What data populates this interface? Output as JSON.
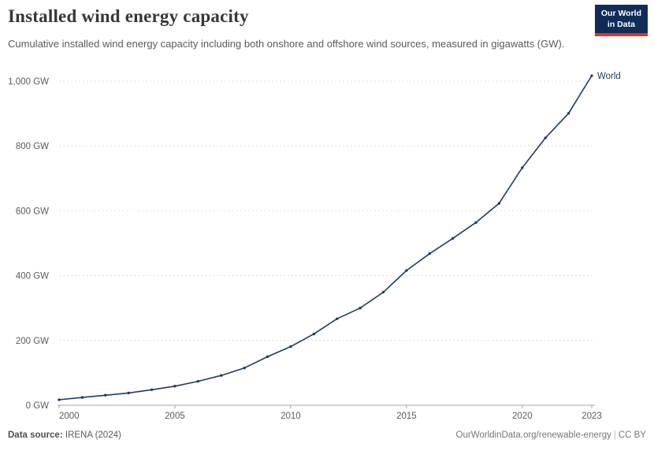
{
  "header": {
    "title": "Installed wind energy capacity",
    "subtitle": "Cumulative installed wind energy capacity including both onshore and offshore wind sources, measured in gigawatts (GW).",
    "logo": {
      "line1": "Our World",
      "line2": "in Data",
      "bg_color": "#102d59",
      "accent_color": "#d5392e"
    }
  },
  "chart_data": {
    "type": "line",
    "title": "Installed wind energy capacity",
    "xlabel": "",
    "ylabel": "",
    "xlim": [
      2000,
      2023
    ],
    "ylim": [
      0,
      1050
    ],
    "grid": "horizontal-dashed",
    "legend_position": "end-of-line",
    "x_ticks": [
      2000,
      2005,
      2010,
      2015,
      2020,
      2023
    ],
    "y_ticks": [
      0,
      200,
      400,
      600,
      800,
      1000
    ],
    "y_tick_labels": [
      "0 GW",
      "200 GW",
      "400 GW",
      "600 GW",
      "800 GW",
      "1,000 GW"
    ],
    "series": [
      {
        "name": "World",
        "color": "#1e3c64",
        "label_color": "#1d3d63",
        "x": [
          2000,
          2001,
          2002,
          2003,
          2004,
          2005,
          2006,
          2007,
          2008,
          2009,
          2010,
          2011,
          2012,
          2013,
          2014,
          2015,
          2016,
          2017,
          2018,
          2019,
          2020,
          2021,
          2022,
          2023
        ],
        "values": [
          17,
          24,
          31,
          38,
          48,
          59,
          74,
          92,
          115,
          150,
          181,
          220,
          267,
          300,
          349,
          416,
          468,
          515,
          564,
          623,
          733,
          825,
          901,
          1017
        ]
      }
    ],
    "colors": {
      "gridline": "#dddddd",
      "axis_line": "#a5a5a5",
      "tick_label": "#5b5b5b"
    }
  },
  "footer": {
    "source_label": "Data source:",
    "source_value": "IRENA (2024)",
    "link": "OurWorldinData.org/renewable-energy",
    "separator": "|",
    "license": "CC BY"
  }
}
